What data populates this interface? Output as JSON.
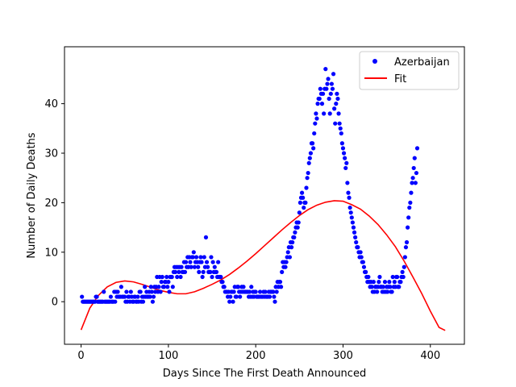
{
  "chart_data": {
    "type": "scatter",
    "title": "",
    "xlabel": "Days Since The First Death Announced",
    "ylabel": "Number of Daily Deaths",
    "xlim": [
      -19,
      439
    ],
    "ylim": [
      -8.6,
      51.5
    ],
    "xticks": [
      0,
      100,
      200,
      300,
      400
    ],
    "yticks": [
      0,
      10,
      20,
      30,
      40
    ],
    "grid": false,
    "legend_position": "upper right",
    "legend": [
      {
        "label": "Azerbaijan",
        "kind": "marker",
        "color": "#0000ff"
      },
      {
        "label": "Fit",
        "kind": "line",
        "color": "#ff0000"
      }
    ],
    "series": [
      {
        "name": "Azerbaijan",
        "kind": "scatter",
        "color": "#0000ff",
        "x_start": 1,
        "values": [
          1,
          0,
          0,
          0,
          0,
          0,
          0,
          0,
          0,
          0,
          0,
          0,
          0,
          0,
          0,
          0,
          1,
          1,
          0,
          0,
          0,
          0,
          0,
          0,
          0,
          2,
          0,
          0,
          0,
          0,
          0,
          0,
          0,
          1,
          0,
          0,
          0,
          2,
          0,
          2,
          1,
          2,
          1,
          1,
          1,
          3,
          1,
          1,
          1,
          1,
          0,
          2,
          0,
          1,
          1,
          0,
          2,
          1,
          0,
          0,
          1,
          1,
          0,
          0,
          1,
          0,
          2,
          2,
          0,
          1,
          0,
          1,
          3,
          1,
          2,
          1,
          1,
          2,
          1,
          3,
          2,
          0,
          1,
          3,
          2,
          3,
          5,
          2,
          3,
          5,
          2,
          4,
          5,
          3,
          3,
          4,
          4,
          5,
          3,
          4,
          2,
          5,
          5,
          5,
          3,
          6,
          7,
          6,
          7,
          5,
          7,
          6,
          7,
          5,
          7,
          6,
          6,
          8,
          6,
          8,
          7,
          9,
          7,
          9,
          8,
          7,
          9,
          9,
          10,
          7,
          8,
          9,
          8,
          7,
          6,
          8,
          9,
          8,
          5,
          6,
          9,
          7,
          13,
          8,
          7,
          6,
          6,
          6,
          9,
          5,
          8,
          6,
          7,
          6,
          6,
          5,
          8,
          5,
          5,
          5,
          4,
          4,
          3,
          3,
          2,
          2,
          2,
          1,
          2,
          0,
          1,
          2,
          2,
          0,
          2,
          3,
          1,
          1,
          3,
          3,
          2,
          1,
          2,
          3,
          2,
          3,
          2,
          2,
          2,
          2,
          2,
          1,
          2,
          1,
          3,
          1,
          2,
          1,
          2,
          2,
          1,
          1,
          1,
          1,
          2,
          1,
          1,
          1,
          2,
          1,
          2,
          1,
          1,
          1,
          2,
          1,
          2,
          2,
          2,
          2,
          1,
          0,
          3,
          2,
          4,
          3,
          4,
          4,
          3,
          6,
          8,
          7,
          8,
          7,
          8,
          9,
          10,
          11,
          9,
          12,
          11,
          12,
          13,
          13,
          14,
          15,
          16,
          15,
          16,
          18,
          20,
          21,
          22,
          21,
          19,
          20,
          20,
          23,
          25,
          26,
          28,
          29,
          30,
          32,
          32,
          31,
          34,
          36,
          38,
          37,
          40,
          41,
          41,
          43,
          42,
          40,
          42,
          38,
          43,
          47,
          43,
          44,
          45,
          41,
          38,
          42,
          44,
          43,
          46,
          39,
          36,
          40,
          42,
          41,
          38,
          36,
          35,
          34,
          32,
          31,
          30,
          29,
          27,
          28,
          24,
          22,
          21,
          19,
          18,
          17,
          16,
          15,
          14,
          13,
          12,
          11,
          11,
          10,
          9,
          10,
          9,
          8,
          8,
          7,
          6,
          6,
          5,
          4,
          5,
          4,
          3,
          4,
          3,
          2,
          4,
          2,
          3,
          3,
          2,
          3,
          4,
          5,
          3,
          3,
          2,
          3,
          2,
          4,
          2,
          3,
          2,
          3,
          4,
          3,
          2,
          2,
          5,
          3,
          4,
          3,
          5,
          5,
          3,
          3,
          4,
          4,
          5,
          6,
          5,
          7,
          9,
          11,
          12,
          15,
          17,
          19,
          20,
          22,
          24,
          25,
          27,
          29,
          24,
          26,
          31
        ]
      },
      {
        "name": "Fit",
        "kind": "line",
        "color": "#ff0000",
        "x": [
          0,
          10,
          20,
          30,
          40,
          50,
          60,
          70,
          80,
          90,
          100,
          110,
          120,
          130,
          140,
          150,
          160,
          170,
          180,
          190,
          200,
          210,
          220,
          230,
          240,
          250,
          260,
          270,
          280,
          290,
          300,
          310,
          320,
          330,
          340,
          350,
          360,
          370,
          380,
          390,
          400,
          410,
          417
        ],
        "values": [
          -5.7,
          -1.3,
          1.3,
          3.0,
          3.9,
          4.2,
          4.0,
          3.5,
          2.9,
          2.3,
          1.9,
          1.6,
          1.6,
          2.0,
          2.7,
          3.5,
          4.4,
          5.5,
          6.8,
          8.2,
          9.7,
          11.3,
          12.9,
          14.5,
          16.0,
          17.4,
          18.6,
          19.5,
          20.1,
          20.4,
          20.3,
          19.6,
          18.7,
          17.3,
          15.6,
          13.5,
          11.1,
          8.2,
          5.0,
          1.7,
          -1.9,
          -5.2,
          -5.8
        ]
      }
    ]
  }
}
